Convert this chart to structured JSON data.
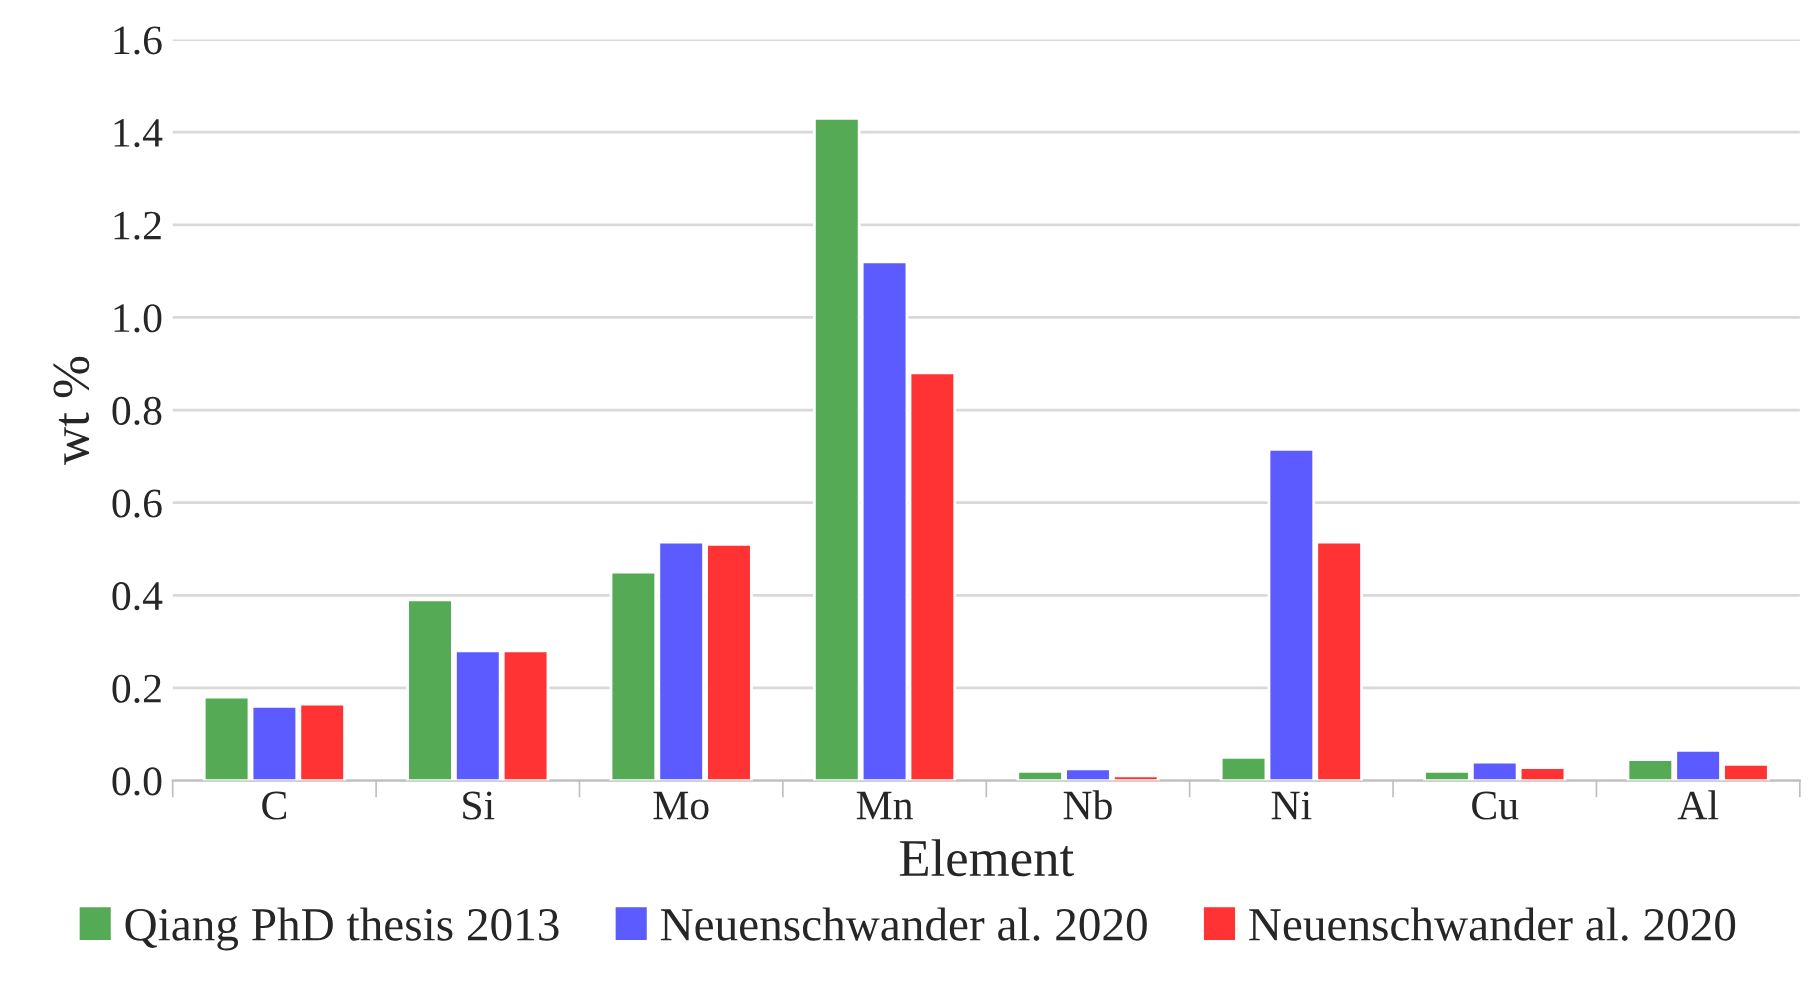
{
  "chart_data": {
    "type": "bar",
    "xlabel": "Element",
    "ylabel": "wt %",
    "categories": [
      "C",
      "Si",
      "Mo",
      "Mn",
      "Nb",
      "Ni",
      "Cu",
      "Al"
    ],
    "series": [
      {
        "name": "Qiang PhD thesis 2013",
        "color": "#55aa55",
        "values": [
          0.18,
          0.39,
          0.45,
          1.43,
          0.02,
          0.05,
          0.02,
          0.045
        ]
      },
      {
        "name": "Neuenschwander al. 2020",
        "color": "#5b5bff",
        "values": [
          0.16,
          0.28,
          0.515,
          1.12,
          0.025,
          0.715,
          0.04,
          0.065
        ]
      },
      {
        "name": "Neuenschwander al. 2020",
        "color": "#ff3333",
        "values": [
          0.165,
          0.28,
          0.51,
          0.88,
          0.01,
          0.515,
          0.028,
          0.035
        ]
      }
    ],
    "ylim": [
      0,
      1.6
    ],
    "yticks": [
      {
        "value": 0,
        "label": "0.0"
      },
      {
        "value": 0.2,
        "label": "0.2"
      },
      {
        "value": 0.4,
        "label": "0.4"
      },
      {
        "value": 0.6,
        "label": "0.6"
      },
      {
        "value": 0.8,
        "label": "0.8"
      },
      {
        "value": 1.0,
        "label": "1.0"
      },
      {
        "value": 1.2,
        "label": "1.2"
      },
      {
        "value": 1.4,
        "label": "1.4"
      },
      {
        "value": 1.6,
        "label": "1.6"
      }
    ],
    "grid": "y",
    "legend": "bottom"
  }
}
